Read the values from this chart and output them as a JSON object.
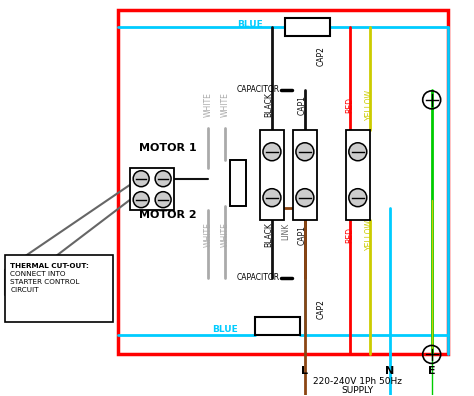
{
  "bg": "#ffffff",
  "red_border_color": "#ff0000",
  "blue": "#00ccff",
  "white_wire": "#aaaaaa",
  "black_wire": "#111111",
  "red_wire": "#ff0000",
  "yellow_wire": "#cccc00",
  "brown_wire": "#8B4513",
  "cyan_wire": "#00ccff",
  "green_wire": "#00cc00",
  "gray": "#666666",
  "motor1_label": "MOTOR 1",
  "motor2_label": "MOTOR 2",
  "thermal_lines": [
    "THERMAL CUT-OUT:",
    "CONNECT INTO",
    "STARTER CONTROL",
    "CIRCUIT"
  ],
  "supply_text_line1": "220-240V 1Ph 50Hz",
  "supply_text_line2": "SUPPLY",
  "L": "L",
  "N": "N",
  "E": "E",
  "blue_label": "BLUE",
  "cap_label": "CAPACITOR",
  "cap2_label": "CAP2",
  "cap1_label": "CAP1",
  "link_label": "LINK",
  "black_label": "BLACK",
  "white_label": "WHITE",
  "red_label": "RED",
  "yellow_label": "YELLOW"
}
